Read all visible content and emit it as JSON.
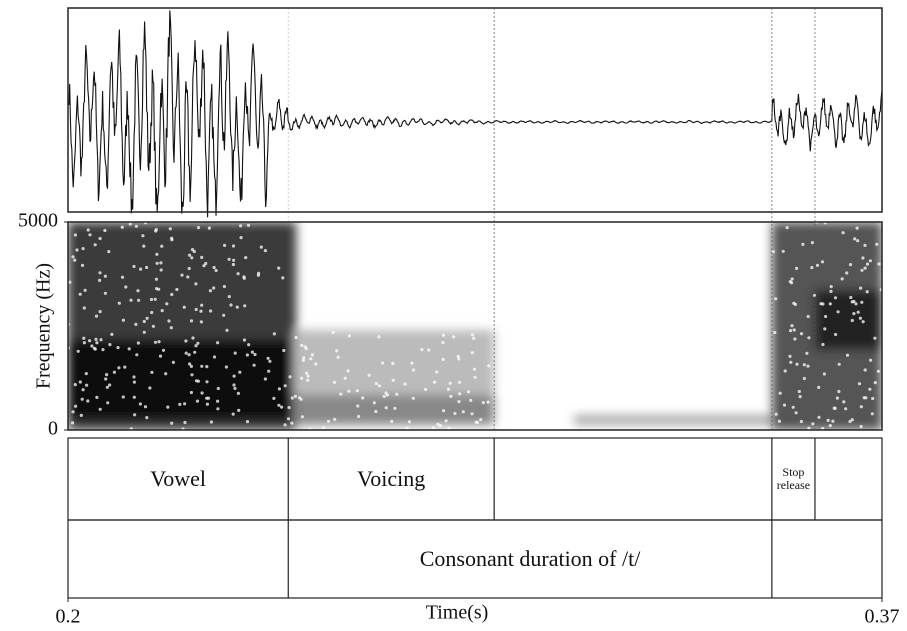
{
  "chart_data": {
    "type": "praat-figure",
    "x_label": "Time(s)",
    "y_label": "Frequency (Hz)",
    "xlim": [
      0.2,
      0.37
    ],
    "xticks": [
      0.2,
      0.37
    ],
    "ylim": [
      0,
      5000
    ],
    "yticks": [
      0,
      5000
    ],
    "tiers": [
      {
        "boundaries": [
          0.246,
          0.289,
          0.347,
          0.356
        ],
        "intervals": [
          {
            "start": 0.2,
            "end": 0.246,
            "label": "Vowel"
          },
          {
            "start": 0.246,
            "end": 0.289,
            "label": "Voicing"
          },
          {
            "start": 0.347,
            "end": 0.356,
            "label": "Stop release"
          }
        ]
      },
      {
        "boundaries": [
          0.246,
          0.347
        ],
        "intervals": [
          {
            "start": 0.246,
            "end": 0.347,
            "label": "Consonant duration of /t/"
          }
        ]
      }
    ]
  }
}
